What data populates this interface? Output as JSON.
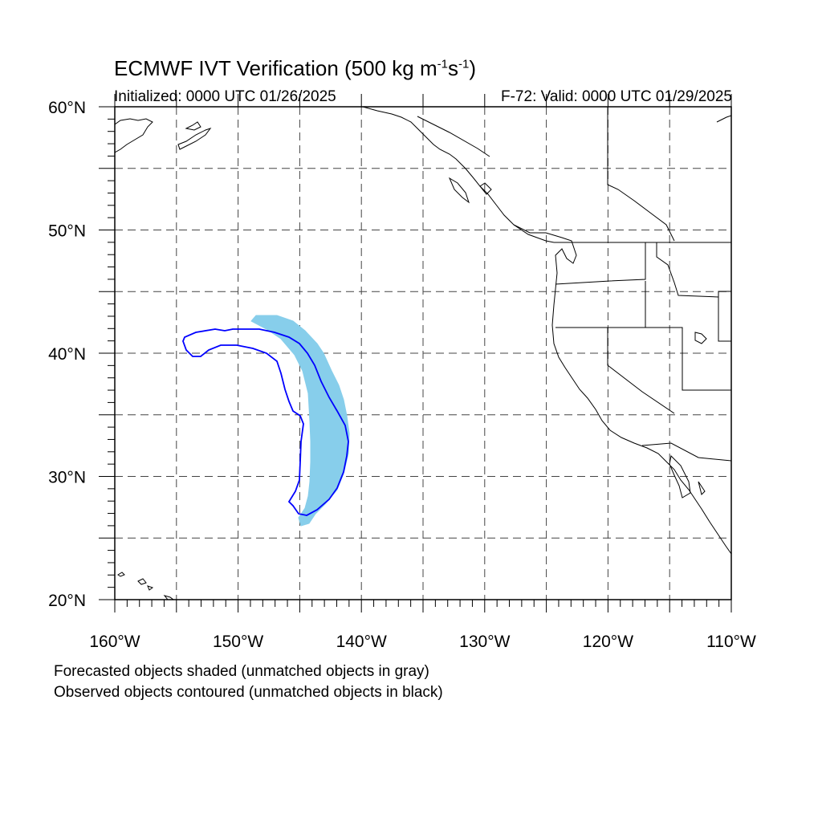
{
  "title": {
    "main": "ECMWF IVT Verification (500 kg m",
    "exp1": "-1",
    "mid": "s",
    "exp2": "-1",
    "end": ")"
  },
  "subtitle": {
    "initialized": "Initialized: 0000 UTC 01/26/2025",
    "valid": "F-72: Valid: 0000 UTC 01/29/2025"
  },
  "map": {
    "lon_range": [
      -160,
      -110
    ],
    "lat_range": [
      20,
      60
    ],
    "lon_ticks": [
      {
        "label": "160°W",
        "value": -160
      },
      {
        "label": "150°W",
        "value": -150
      },
      {
        "label": "140°W",
        "value": -140
      },
      {
        "label": "130°W",
        "value": -130
      },
      {
        "label": "120°W",
        "value": -120
      },
      {
        "label": "110°W",
        "value": -110
      }
    ],
    "lat_ticks": [
      {
        "label": "60°N",
        "value": 60
      },
      {
        "label": "50°N",
        "value": 50
      },
      {
        "label": "40°N",
        "value": 40
      },
      {
        "label": "30°N",
        "value": 30
      },
      {
        "label": "20°N",
        "value": 20
      }
    ],
    "grid_lines": "dashed every 5 degrees",
    "forecast_object_color": "#87ceeb",
    "observed_contour_color": "#0000ff",
    "coastline_color": "#000000"
  },
  "legend": {
    "line1": "Forecasted objects shaded (unmatched objects in gray)",
    "line2": "Observed objects contoured (unmatched objects in black)"
  }
}
